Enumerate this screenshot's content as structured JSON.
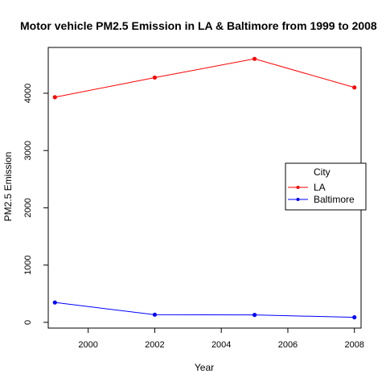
{
  "chart_data": {
    "type": "line",
    "title": "Motor vehicle PM2.5 Emission in LA & Baltimore from 1999 to 2008",
    "xlabel": "Year",
    "ylabel": "PM2.5 Emission",
    "x": [
      1999,
      2002,
      2005,
      2008
    ],
    "xlim": [
      1998.8,
      2008.2
    ],
    "ylim": [
      -100,
      4800
    ],
    "xticks": [
      2000,
      2002,
      2004,
      2006,
      2008
    ],
    "yticks": [
      0,
      1000,
      2000,
      3000,
      4000
    ],
    "grid": false,
    "legend": {
      "title": "City",
      "placement": "right"
    },
    "series": [
      {
        "name": "LA",
        "color": "#ff0000",
        "values": [
          3931,
          4274,
          4601,
          4101
        ]
      },
      {
        "name": "Baltimore",
        "color": "#0000ff",
        "values": [
          347,
          134,
          130,
          88
        ]
      }
    ]
  }
}
